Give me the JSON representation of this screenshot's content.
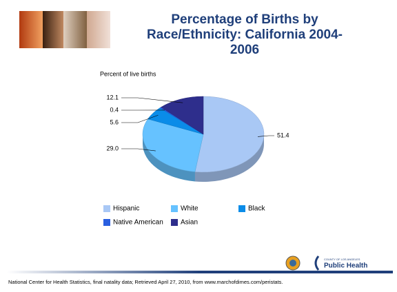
{
  "chart_data": {
    "type": "pie3d",
    "title": "Percentage of Births by Race/Ethnicity: California 2004-2006",
    "subtitle": "Percent of live births",
    "categories": [
      "Hispanic",
      "White",
      "Black",
      "Native American",
      "Asian"
    ],
    "values": [
      51.4,
      29.0,
      5.6,
      0.4,
      12.1
    ],
    "value_labels": [
      "51.4",
      "29.0",
      "5.6",
      "0.4",
      "12.1"
    ],
    "colors": [
      "#a9c8f5",
      "#66c2ff",
      "#0a8ce8",
      "#2a5fe0",
      "#2e2e8c"
    ],
    "source": "National Center for Health Statistics, final natality data; Retrieved April 27, 2010, from www.marchofdimes.com/peristats."
  },
  "logo": {
    "county": "COUNTY OF LOS ANGELES",
    "name": "Public Health"
  }
}
